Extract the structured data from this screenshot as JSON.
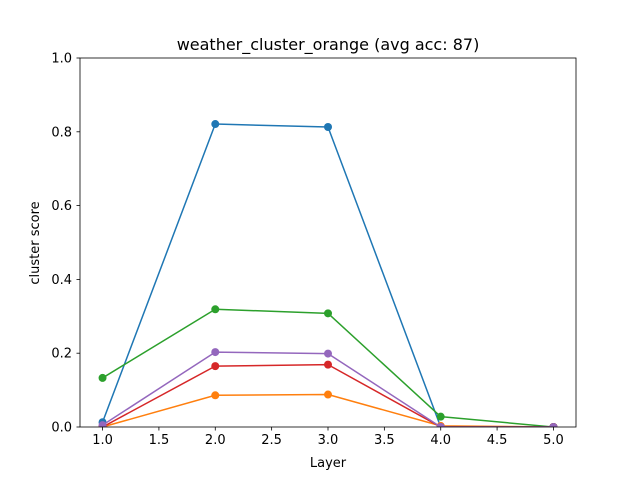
{
  "chart_data": {
    "type": "line",
    "title": "weather_cluster_orange (avg acc: 87)",
    "xlabel": "Layer",
    "ylabel": "cluster score",
    "xlim": [
      0.8,
      5.2
    ],
    "ylim": [
      0.0,
      1.0
    ],
    "xticks": [
      "1.0",
      "1.5",
      "2.0",
      "2.5",
      "3.0",
      "3.5",
      "4.0",
      "4.5",
      "5.0"
    ],
    "yticks": [
      "0.0",
      "0.2",
      "0.4",
      "0.6",
      "0.8",
      "1.0"
    ],
    "grid": false,
    "x": [
      1,
      2,
      3,
      4,
      5
    ],
    "series": [
      {
        "color": "#1f77b4",
        "values": [
          0.013,
          0.821,
          0.813,
          0.0,
          0.0
        ]
      },
      {
        "color": "#ff7f0e",
        "values": [
          0.0,
          0.086,
          0.088,
          0.003,
          0.0
        ]
      },
      {
        "color": "#2ca02c",
        "values": [
          0.133,
          0.319,
          0.308,
          0.028,
          0.0
        ]
      },
      {
        "color": "#d62728",
        "values": [
          0.0,
          0.165,
          0.169,
          0.0,
          0.0
        ]
      },
      {
        "color": "#9467bd",
        "values": [
          0.005,
          0.203,
          0.199,
          0.0,
          0.0
        ]
      }
    ]
  }
}
